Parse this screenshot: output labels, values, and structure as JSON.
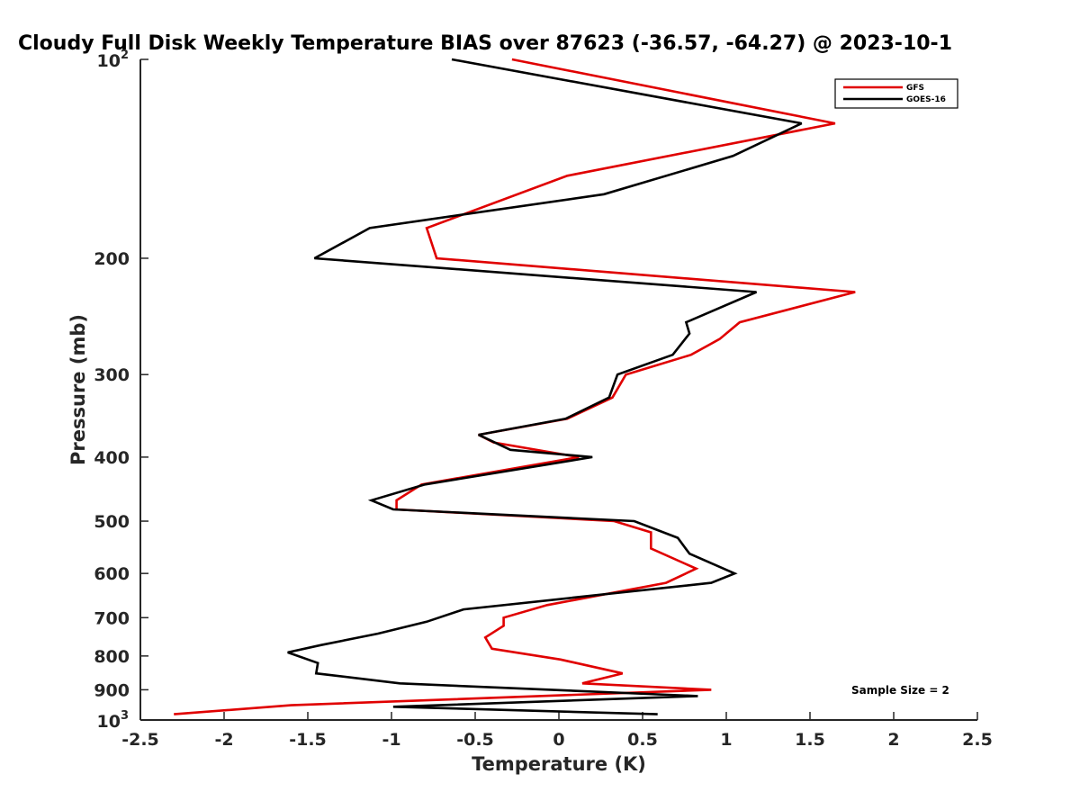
{
  "chart_data": {
    "type": "line",
    "title": "Cloudy Full Disk Weekly Temperature BIAS over 87623 (-36.57, -64.27) @ 2023-10-1",
    "xlabel": "Temperature (K)",
    "ylabel": "Pressure (mb)",
    "xlim": [
      -2.5,
      2.5
    ],
    "ylim": [
      100,
      1000
    ],
    "y_scale": "log",
    "y_reversed": true,
    "x_ticks": [
      "-2.5",
      "-2",
      "-1.5",
      "-1",
      "-0.5",
      "0",
      "0.5",
      "1",
      "1.5",
      "2",
      "2.5"
    ],
    "y_ticks": [
      {
        "value": 100,
        "base": "10",
        "exp": "2"
      },
      {
        "value": 200,
        "label": "200"
      },
      {
        "value": 300,
        "label": "300"
      },
      {
        "value": 400,
        "label": "400"
      },
      {
        "value": 500,
        "label": "500"
      },
      {
        "value": 600,
        "label": "600"
      },
      {
        "value": 700,
        "label": "700"
      },
      {
        "value": 800,
        "label": "800"
      },
      {
        "value": 900,
        "label": "900"
      },
      {
        "value": 1000,
        "base": "10",
        "exp": "3"
      }
    ],
    "grid": false,
    "legend_position": "top-right",
    "annotation": "Sample Size = 2",
    "series": [
      {
        "name": "GFS",
        "color": "#e00000",
        "points": [
          [
            -0.28,
            100
          ],
          [
            1.65,
            125
          ],
          [
            0.05,
            150
          ],
          [
            -0.79,
            180
          ],
          [
            -0.73,
            200
          ],
          [
            1.77,
            225
          ],
          [
            1.08,
            250
          ],
          [
            0.96,
            265
          ],
          [
            0.79,
            280
          ],
          [
            0.4,
            300
          ],
          [
            0.32,
            325
          ],
          [
            0.05,
            350
          ],
          [
            -0.48,
            370
          ],
          [
            -0.39,
            380
          ],
          [
            0.12,
            400
          ],
          [
            -0.82,
            440
          ],
          [
            -0.97,
            465
          ],
          [
            -0.97,
            480
          ],
          [
            0.33,
            500
          ],
          [
            0.55,
            520
          ],
          [
            0.55,
            550
          ],
          [
            0.82,
            590
          ],
          [
            0.64,
            620
          ],
          [
            -0.07,
            670
          ],
          [
            -0.33,
            700
          ],
          [
            -0.33,
            720
          ],
          [
            -0.44,
            750
          ],
          [
            -0.4,
            780
          ],
          [
            0.01,
            810
          ],
          [
            0.38,
            850
          ],
          [
            0.14,
            880
          ],
          [
            0.91,
            900
          ],
          [
            -1.6,
            950
          ],
          [
            -2.3,
            980
          ]
        ]
      },
      {
        "name": "GOES-16",
        "color": "#000000",
        "points": [
          [
            -0.64,
            100
          ],
          [
            1.45,
            125
          ],
          [
            1.04,
            140
          ],
          [
            0.27,
            160
          ],
          [
            -1.13,
            180
          ],
          [
            -1.46,
            200
          ],
          [
            1.18,
            225
          ],
          [
            0.76,
            250
          ],
          [
            0.78,
            260
          ],
          [
            0.68,
            280
          ],
          [
            0.35,
            300
          ],
          [
            0.3,
            325
          ],
          [
            0.04,
            350
          ],
          [
            -0.48,
            370
          ],
          [
            -0.29,
            390
          ],
          [
            0.2,
            400
          ],
          [
            -0.8,
            440
          ],
          [
            -1.12,
            465
          ],
          [
            -0.99,
            480
          ],
          [
            0.45,
            500
          ],
          [
            0.71,
            530
          ],
          [
            0.78,
            560
          ],
          [
            1.05,
            600
          ],
          [
            0.91,
            620
          ],
          [
            -0.57,
            680
          ],
          [
            -0.79,
            710
          ],
          [
            -1.08,
            740
          ],
          [
            -1.42,
            770
          ],
          [
            -1.62,
            790
          ],
          [
            -1.44,
            820
          ],
          [
            -1.45,
            850
          ],
          [
            -0.95,
            880
          ],
          [
            0.83,
            920
          ],
          [
            -0.99,
            955
          ],
          [
            0.59,
            980
          ]
        ]
      }
    ]
  }
}
